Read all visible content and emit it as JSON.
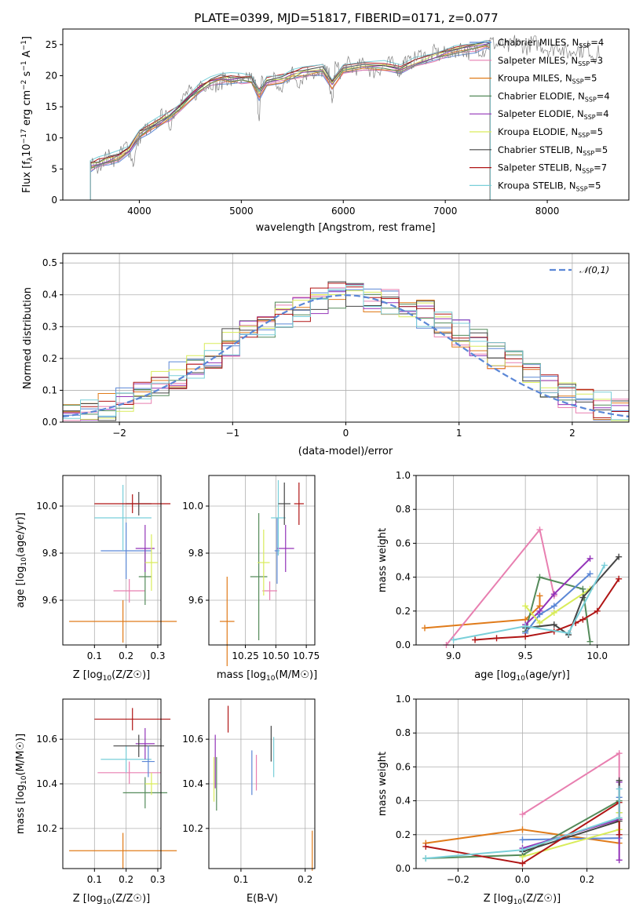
{
  "chart_data": [
    {
      "id": "spectrum",
      "type": "line",
      "title": "PLATE=0399, MJD=51817, FIBERID=0171, z=0.077",
      "xlabel": "wavelength [Angstrom, rest frame]",
      "ylabel_parts": [
        "Flux [f",
        "λ",
        "10",
        "−17",
        " erg cm",
        "−2",
        " s",
        "−1",
        " A",
        "−1",
        "]"
      ],
      "xlim": [
        3250,
        8800
      ],
      "ylim": [
        0,
        27.5
      ],
      "xticks": [
        4000,
        5000,
        6000,
        7000,
        8000
      ],
      "yticks": [
        0,
        5,
        10,
        15,
        20,
        25
      ],
      "grid": false,
      "legend_position": "right",
      "observed_spectrum": {
        "color": "#808080",
        "x": [
          3520,
          3580,
          3640,
          3700,
          3760,
          3820,
          3880,
          3940,
          4000,
          4060,
          4120,
          4180,
          4240,
          4300,
          4360,
          4420,
          4480,
          4540,
          4600,
          4660,
          4720,
          4780,
          4840,
          4900,
          4960,
          5020,
          5080,
          5140,
          5175,
          5200,
          5260,
          5320,
          5380,
          5440,
          5500,
          5560,
          5620,
          5680,
          5740,
          5800,
          5860,
          5890,
          5920,
          5980,
          6040,
          6100,
          6160,
          6220,
          6280,
          6340,
          6400,
          6460,
          6520,
          6560,
          6600,
          6660,
          6720,
          6780,
          6840,
          6900,
          6960,
          7020,
          7080,
          7140,
          7200,
          7260,
          7320,
          7380,
          7440,
          7500,
          7560,
          7620,
          7680,
          7740,
          7800,
          7860,
          7920,
          7980,
          8040,
          8100,
          8160,
          8220,
          8280,
          8340,
          8400,
          8460,
          8520
        ],
        "y": [
          6,
          5,
          6.5,
          7,
          6.5,
          7.5,
          9,
          6,
          10,
          11.5,
          11,
          12.5,
          14,
          12,
          15,
          16,
          17.5,
          16.5,
          19,
          18.5,
          19,
          18,
          20,
          19,
          19.5,
          18.5,
          20,
          18.5,
          13.5,
          19,
          18.5,
          20,
          17,
          19.5,
          20.5,
          19,
          20,
          21,
          19.5,
          21,
          20,
          15,
          21.5,
          20.5,
          22,
          21,
          21.5,
          22,
          20.5,
          21,
          21.5,
          22,
          21.5,
          20.5,
          22.5,
          22,
          23,
          23.5,
          22.5,
          24,
          23,
          24,
          23.5,
          24.5,
          24,
          23.5,
          24.5,
          24,
          25.5,
          25,
          25,
          24.5,
          25.5,
          25,
          24.5,
          25.5,
          25,
          24.5,
          24,
          25,
          24,
          23.5,
          24.5,
          24,
          24.5,
          23,
          24
        ]
      },
      "models": {
        "x": [
          3520,
          3600,
          3700,
          3800,
          3900,
          4000,
          4100,
          4200,
          4300,
          4400,
          4500,
          4600,
          4700,
          4800,
          4900,
          5000,
          5100,
          5175,
          5250,
          5400,
          5500,
          5600,
          5800,
          5890,
          6000,
          6200,
          6400,
          6563,
          6700,
          6900,
          7100,
          7300,
          7400,
          7440
        ],
        "y": [
          5.5,
          6,
          6.5,
          7,
          8,
          10.5,
          11.5,
          12.5,
          13.5,
          15,
          16.5,
          18,
          19,
          19.5,
          19.5,
          19.5,
          19.5,
          17,
          19,
          19.5,
          20,
          20.5,
          21,
          18.5,
          21,
          21.5,
          21.5,
          21,
          22,
          23,
          24,
          24.5,
          25,
          25
        ]
      },
      "series": [
        {
          "name": "Chabrier MILES",
          "nssp": "4",
          "color": "#5b87d6"
        },
        {
          "name": "Salpeter MILES",
          "nssp": "3",
          "color": "#e87fb0"
        },
        {
          "name": "Kroupa MILES",
          "nssp": "5",
          "color": "#e07b1a"
        },
        {
          "name": "Chabrier ELODIE",
          "nssp": "4",
          "color": "#548a5a"
        },
        {
          "name": "Salpeter ELODIE",
          "nssp": "4",
          "color": "#9333b8"
        },
        {
          "name": "Kroupa ELODIE",
          "nssp": "5",
          "color": "#d9ec5a"
        },
        {
          "name": "Chabrier STELIB",
          "nssp": "5",
          "color": "#454545"
        },
        {
          "name": "Salpeter STELIB",
          "nssp": "7",
          "color": "#b01515"
        },
        {
          "name": "Kroupa STELIB",
          "nssp": "5",
          "color": "#79cfd9"
        }
      ]
    },
    {
      "id": "residuals",
      "type": "histogram",
      "xlabel": "(data-model)/error",
      "ylabel": "Normed distribution",
      "xlim": [
        -2.5,
        2.5
      ],
      "ylim": [
        0,
        0.53
      ],
      "xticks": [
        -2,
        -1,
        0,
        1,
        2
      ],
      "yticks": [
        0.0,
        0.1,
        0.2,
        0.3,
        0.4,
        0.5
      ],
      "grid": true,
      "legend_position": "top-right",
      "reference": {
        "name": "𝒩(0,1)",
        "color": "#5b87d6"
      },
      "hist_base": [
        0.02,
        0.03,
        0.05,
        0.07,
        0.09,
        0.12,
        0.15,
        0.18,
        0.21,
        0.25,
        0.28,
        0.31,
        0.34,
        0.36,
        0.38,
        0.4,
        0.4,
        0.39,
        0.38,
        0.36,
        0.34,
        0.31,
        0.28,
        0.25,
        0.21,
        0.18,
        0.15,
        0.12,
        0.09,
        0.07,
        0.05,
        0.03
      ],
      "series_colors": [
        "#5b87d6",
        "#e87fb0",
        "#e07b1a",
        "#548a5a",
        "#9333b8",
        "#d9ec5a",
        "#454545",
        "#b01515",
        "#79cfd9"
      ]
    },
    {
      "id": "age_vs_Z",
      "type": "errorbar",
      "xlabel": "Z [log10(Z/Z☉)]",
      "ylabel": "age  [log10(age/yr)]",
      "xlim": [
        0.0,
        0.31
      ],
      "ylim": [
        9.41,
        10.13
      ],
      "xticks": [
        0.1,
        0.2,
        0.3
      ],
      "yticks": [
        9.6,
        9.8,
        10.0
      ],
      "points": [
        {
          "x": 0.19,
          "xe": 0.17,
          "y": 9.51,
          "ye": 0.09,
          "color": "#e07b1a"
        },
        {
          "x": 0.21,
          "xe": 0.05,
          "y": 9.64,
          "ye": 0.05,
          "color": "#e87fb0"
        },
        {
          "x": 0.26,
          "xe": 0.02,
          "y": 9.7,
          "ye": 0.12,
          "color": "#548a5a"
        },
        {
          "x": 0.2,
          "xe": 0.08,
          "y": 9.81,
          "ye": 0.12,
          "color": "#5b87d6"
        },
        {
          "x": 0.26,
          "xe": 0.03,
          "y": 9.82,
          "ye": 0.1,
          "color": "#9333b8"
        },
        {
          "x": 0.28,
          "xe": 0.02,
          "y": 9.76,
          "ye": 0.12,
          "color": "#d9ec5a"
        },
        {
          "x": 0.19,
          "xe": 0.09,
          "y": 9.95,
          "ye": 0.14,
          "color": "#79cfd9"
        },
        {
          "x": 0.24,
          "xe": 0.04,
          "y": 10.01,
          "ye": 0.05,
          "color": "#454545"
        },
        {
          "x": 0.22,
          "xe": 0.12,
          "y": 10.01,
          "ye": 0.04,
          "color": "#b01515"
        }
      ]
    },
    {
      "id": "age_vs_mass",
      "type": "errorbar",
      "xlabel": "mass [log10(M/M☉)]",
      "ylabel": "",
      "xlim": [
        9.95,
        10.82
      ],
      "ylim": [
        9.41,
        10.13
      ],
      "xticks": [
        10.25,
        10.5,
        10.75
      ],
      "yticks": [
        9.6,
        9.8,
        10.0
      ],
      "points": [
        {
          "x": 10.1,
          "xe": 0.06,
          "y": 9.51,
          "ye": 0.19,
          "color": "#e07b1a"
        },
        {
          "x": 10.45,
          "xe": 0.06,
          "y": 9.64,
          "ye": 0.04,
          "color": "#e87fb0"
        },
        {
          "x": 10.36,
          "xe": 0.07,
          "y": 9.7,
          "ye": 0.27,
          "color": "#548a5a"
        },
        {
          "x": 10.51,
          "xe": 0.02,
          "y": 9.81,
          "ye": 0.14,
          "color": "#5b87d6"
        },
        {
          "x": 10.58,
          "xe": 0.07,
          "y": 9.82,
          "ye": 0.1,
          "color": "#9333b8"
        },
        {
          "x": 10.4,
          "xe": 0.05,
          "y": 9.76,
          "ye": 0.14,
          "color": "#d9ec5a"
        },
        {
          "x": 10.52,
          "xe": 0.06,
          "y": 9.95,
          "ye": 0.16,
          "color": "#79cfd9"
        },
        {
          "x": 10.57,
          "xe": 0.05,
          "y": 10.01,
          "ye": 0.09,
          "color": "#454545"
        },
        {
          "x": 10.69,
          "xe": 0.04,
          "y": 10.01,
          "ye": 0.09,
          "color": "#b01515"
        }
      ]
    },
    {
      "id": "weight_vs_age",
      "type": "line",
      "xlabel": "age  [log10(age/yr)]",
      "ylabel": "mass weight",
      "xlim": [
        8.74,
        10.22
      ],
      "ylim": [
        0.0,
        1.0
      ],
      "xticks": [
        9.0,
        9.5,
        10.0
      ],
      "yticks": [
        0.0,
        0.2,
        0.4,
        0.6,
        0.8,
        1.0
      ],
      "grid": true,
      "series": [
        {
          "color": "#e07b1a",
          "x": [
            8.8,
            9.5,
            9.6,
            9.6
          ],
          "y": [
            0.1,
            0.15,
            0.23,
            0.29
          ]
        },
        {
          "color": "#e87fb0",
          "x": [
            8.95,
            9.6,
            9.7
          ],
          "y": [
            0.0,
            0.68,
            0.29
          ]
        },
        {
          "color": "#548a5a",
          "x": [
            9.5,
            9.6,
            9.9,
            9.95
          ],
          "y": [
            0.08,
            0.4,
            0.33,
            0.02
          ]
        },
        {
          "color": "#5b87d6",
          "x": [
            9.5,
            9.6,
            9.7,
            9.95
          ],
          "y": [
            0.07,
            0.18,
            0.23,
            0.42
          ]
        },
        {
          "color": "#9333b8",
          "x": [
            9.5,
            9.6,
            9.7,
            9.95
          ],
          "y": [
            0.12,
            0.2,
            0.3,
            0.51
          ]
        },
        {
          "color": "#d9ec5a",
          "x": [
            9.5,
            9.6,
            9.7,
            9.95
          ],
          "y": [
            0.23,
            0.13,
            0.19,
            0.33
          ]
        },
        {
          "color": "#454545",
          "x": [
            9.5,
            9.7,
            9.8,
            9.9,
            10.15
          ],
          "y": [
            0.1,
            0.12,
            0.06,
            0.28,
            0.52
          ]
        },
        {
          "color": "#b01515",
          "x": [
            9.15,
            9.3,
            9.5,
            9.7,
            9.85,
            9.9,
            10.0,
            10.15
          ],
          "y": [
            0.03,
            0.04,
            0.05,
            0.08,
            0.13,
            0.15,
            0.2,
            0.39
          ]
        },
        {
          "color": "#79cfd9",
          "x": [
            9.0,
            9.5,
            9.8,
            10.05
          ],
          "y": [
            0.03,
            0.11,
            0.07,
            0.47
          ]
        }
      ]
    },
    {
      "id": "mass_vs_Z",
      "type": "errorbar",
      "xlabel": "Z [log10(Z/Z☉)]",
      "ylabel": "mass [log10(M/M☉)]",
      "xlim": [
        0.0,
        0.31
      ],
      "ylim": [
        10.02,
        10.78
      ],
      "xticks": [
        0.1,
        0.2,
        0.3
      ],
      "yticks": [
        10.2,
        10.4,
        10.6
      ],
      "points": [
        {
          "x": 0.19,
          "xe": 0.17,
          "y": 10.1,
          "ye": 0.08,
          "color": "#e07b1a"
        },
        {
          "x": 0.21,
          "xe": 0.1,
          "y": 10.45,
          "ye": 0.05,
          "color": "#e87fb0"
        },
        {
          "x": 0.26,
          "xe": 0.07,
          "y": 10.36,
          "ye": 0.07,
          "color": "#548a5a"
        },
        {
          "x": 0.2,
          "xe": 0.08,
          "y": 10.51,
          "ye": 0.06,
          "color": "#79cfd9"
        },
        {
          "x": 0.26,
          "xe": 0.03,
          "y": 10.58,
          "ye": 0.07,
          "color": "#9333b8"
        },
        {
          "x": 0.28,
          "xe": 0.02,
          "y": 10.4,
          "ye": 0.05,
          "color": "#d9ec5a"
        },
        {
          "x": 0.24,
          "xe": 0.08,
          "y": 10.57,
          "ye": 0.05,
          "color": "#454545"
        },
        {
          "x": 0.22,
          "xe": 0.12,
          "y": 10.69,
          "ye": 0.05,
          "color": "#b01515"
        },
        {
          "x": 0.27,
          "xe": 0.02,
          "y": 10.5,
          "ye": 0.07,
          "color": "#5b87d6"
        }
      ]
    },
    {
      "id": "mass_vs_EBV",
      "type": "errorbar",
      "xlabel": "E(B-V)",
      "ylabel": "",
      "xlim": [
        0.05,
        0.215
      ],
      "ylim": [
        10.02,
        10.78
      ],
      "xticks": [
        0.1,
        0.2
      ],
      "yticks": [
        10.2,
        10.4,
        10.6
      ],
      "points": [
        {
          "x": 0.211,
          "y": 10.1,
          "ye": 0.09,
          "color": "#e07b1a"
        },
        {
          "x": 0.124,
          "y": 10.45,
          "ye": 0.08,
          "color": "#e87fb0"
        },
        {
          "x": 0.062,
          "y": 10.4,
          "ye": 0.12,
          "color": "#548a5a"
        },
        {
          "x": 0.117,
          "y": 10.45,
          "ye": 0.1,
          "color": "#5b87d6"
        },
        {
          "x": 0.06,
          "y": 10.5,
          "ye": 0.12,
          "color": "#9333b8"
        },
        {
          "x": 0.058,
          "y": 10.42,
          "ye": 0.1,
          "color": "#d9ec5a"
        },
        {
          "x": 0.147,
          "y": 10.58,
          "ye": 0.08,
          "color": "#454545"
        },
        {
          "x": 0.08,
          "y": 10.69,
          "ye": 0.06,
          "color": "#b01515"
        },
        {
          "x": 0.151,
          "y": 10.52,
          "ye": 0.09,
          "color": "#79cfd9"
        }
      ]
    },
    {
      "id": "weight_vs_Z",
      "type": "line",
      "xlabel": "Z [log10(Z/Z☉)]",
      "ylabel": "mass weight",
      "xlim": [
        -0.33,
        0.33
      ],
      "ylim": [
        0.0,
        1.0
      ],
      "xticks": [
        -0.2,
        0.0,
        0.2
      ],
      "yticks": [
        0.0,
        0.2,
        0.4,
        0.6,
        0.8,
        1.0
      ],
      "grid": true,
      "series": [
        {
          "color": "#e07b1a",
          "x": [
            -0.3,
            0.0,
            0.3,
            0.3
          ],
          "y": [
            0.15,
            0.23,
            0.15,
            0.29
          ]
        },
        {
          "color": "#e87fb0",
          "x": [
            0.0,
            0.3,
            0.3
          ],
          "y": [
            0.32,
            0.68,
            0.29
          ]
        },
        {
          "color": "#548a5a",
          "x": [
            -0.3,
            0.0,
            0.3,
            0.3
          ],
          "y": [
            0.06,
            0.08,
            0.4,
            0.33
          ]
        },
        {
          "color": "#5b87d6",
          "x": [
            0.0,
            0.3,
            0.3
          ],
          "y": [
            0.17,
            0.18,
            0.42
          ]
        },
        {
          "color": "#9333b8",
          "x": [
            0.0,
            0.3,
            0.3,
            0.3
          ],
          "y": [
            0.12,
            0.29,
            0.51,
            0.05
          ]
        },
        {
          "color": "#d9ec5a",
          "x": [
            0.0,
            0.3,
            0.3
          ],
          "y": [
            0.07,
            0.23,
            0.33
          ]
        },
        {
          "color": "#454545",
          "x": [
            0.0,
            0.3,
            0.3
          ],
          "y": [
            0.1,
            0.28,
            0.52
          ]
        },
        {
          "color": "#b01515",
          "x": [
            -0.3,
            0.0,
            0.3,
            0.3
          ],
          "y": [
            0.13,
            0.03,
            0.39,
            0.2
          ]
        },
        {
          "color": "#79cfd9",
          "x": [
            -0.3,
            0.0,
            0.3,
            0.3
          ],
          "y": [
            0.06,
            0.11,
            0.3,
            0.47
          ]
        }
      ]
    }
  ]
}
